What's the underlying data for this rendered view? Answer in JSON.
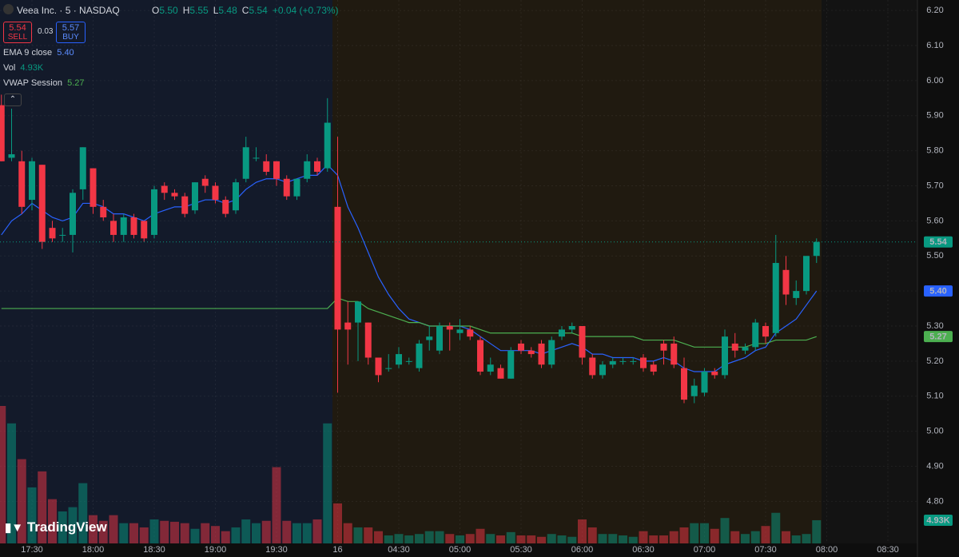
{
  "chart_data": {
    "type": "candlestick",
    "title": "Veea Inc. · 5 · NASDAQ",
    "categories": [
      null,
      null,
      null,
      "17:30",
      null,
      null,
      null,
      null,
      null,
      "18:00",
      null,
      null,
      null,
      null,
      null,
      "18:30",
      null,
      null,
      null,
      null,
      null,
      "19:00",
      null,
      null,
      null,
      null,
      null,
      "19:30",
      null,
      null,
      null,
      null,
      null,
      "16",
      null,
      null,
      null,
      null,
      null,
      "04:30",
      null,
      null,
      null,
      null,
      null,
      "05:00",
      null,
      null,
      null,
      null,
      null,
      "05:30",
      null,
      null,
      null,
      null,
      null,
      "06:00",
      null,
      null,
      null,
      null,
      null,
      "06:30",
      null,
      null,
      null,
      null,
      null,
      "07:00",
      null,
      null,
      null,
      null,
      null,
      "07:30",
      null,
      null,
      null,
      null,
      null,
      "08:00",
      null,
      null,
      null,
      null,
      null,
      "08:30",
      null
    ],
    "open": [
      5.93,
      5.78,
      5.77,
      5.66,
      5.76,
      5.58,
      5.56,
      5.56,
      5.69,
      5.75,
      5.64,
      5.6,
      5.56,
      5.61,
      5.6,
      5.56,
      5.7,
      5.68,
      5.67,
      5.63,
      5.72,
      5.7,
      5.66,
      5.63,
      5.72,
      5.78,
      5.77,
      5.77,
      5.72,
      5.67,
      5.72,
      5.77,
      5.75,
      5.64,
      5.31,
      5.31,
      5.31,
      5.21,
      5.18,
      5.19,
      5.2,
      5.18,
      5.26,
      5.23,
      5.3,
      5.28,
      5.29,
      5.26,
      5.17,
      5.18,
      5.15,
      5.25,
      5.23,
      5.25,
      5.19,
      5.27,
      5.29,
      5.3,
      5.21,
      5.16,
      5.19,
      5.2,
      5.2,
      5.21,
      5.19,
      5.25,
      5.25,
      5.18,
      5.1,
      5.11,
      5.17,
      5.16,
      5.25,
      5.23,
      5.24,
      5.3,
      5.28,
      5.46,
      5.38,
      5.4,
      5.5,
      null,
      null,
      null,
      null,
      null,
      null,
      null,
      null
    ],
    "high": [
      5.96,
      5.92,
      5.8,
      5.78,
      5.76,
      5.6,
      5.58,
      5.69,
      5.81,
      5.75,
      5.66,
      5.62,
      5.62,
      5.62,
      5.6,
      5.7,
      5.71,
      5.69,
      5.68,
      5.71,
      5.73,
      5.71,
      5.67,
      5.72,
      5.84,
      5.81,
      5.79,
      5.77,
      5.73,
      5.72,
      5.79,
      5.78,
      5.95,
      5.84,
      5.37,
      5.37,
      5.31,
      5.21,
      5.22,
      5.24,
      5.21,
      5.26,
      5.3,
      5.31,
      5.31,
      5.32,
      5.3,
      5.27,
      5.21,
      5.19,
      5.24,
      5.26,
      5.24,
      5.26,
      5.27,
      5.3,
      5.31,
      5.3,
      5.22,
      5.2,
      5.21,
      5.21,
      5.21,
      5.22,
      5.2,
      5.26,
      5.27,
      5.21,
      5.15,
      5.18,
      5.18,
      5.29,
      5.28,
      5.25,
      5.32,
      5.31,
      5.56,
      5.5,
      5.43,
      5.5,
      5.55,
      null,
      null,
      null,
      null,
      null,
      null,
      null,
      null
    ],
    "low": [
      5.77,
      5.77,
      5.62,
      5.63,
      5.52,
      5.54,
      5.54,
      5.51,
      5.66,
      5.62,
      5.6,
      5.54,
      5.54,
      5.55,
      5.54,
      5.55,
      5.66,
      5.66,
      5.61,
      5.62,
      5.68,
      5.65,
      5.61,
      5.62,
      5.71,
      5.77,
      5.73,
      5.7,
      5.66,
      5.66,
      5.71,
      5.73,
      5.74,
      5.11,
      5.19,
      5.2,
      5.19,
      5.14,
      5.17,
      5.18,
      5.19,
      5.17,
      5.23,
      5.22,
      5.23,
      5.26,
      5.26,
      5.16,
      5.16,
      5.15,
      5.15,
      5.22,
      5.21,
      5.18,
      5.18,
      5.26,
      5.28,
      5.19,
      5.15,
      5.15,
      5.18,
      5.19,
      5.19,
      5.17,
      5.16,
      5.19,
      5.18,
      5.08,
      5.08,
      5.1,
      5.15,
      5.15,
      5.21,
      5.22,
      5.23,
      5.25,
      5.27,
      5.36,
      5.36,
      5.39,
      5.48,
      null,
      null,
      null,
      null,
      null,
      null,
      null,
      null
    ],
    "close": [
      5.77,
      5.79,
      5.64,
      5.77,
      5.54,
      5.55,
      5.56,
      5.68,
      5.81,
      5.64,
      5.61,
      5.56,
      5.61,
      5.56,
      5.55,
      5.69,
      5.68,
      5.67,
      5.62,
      5.71,
      5.7,
      5.66,
      5.62,
      5.71,
      5.81,
      5.78,
      5.74,
      5.72,
      5.67,
      5.72,
      5.77,
      5.74,
      5.88,
      5.29,
      5.29,
      5.37,
      5.21,
      5.16,
      5.18,
      5.22,
      5.2,
      5.25,
      5.27,
      5.3,
      5.29,
      5.29,
      5.27,
      5.17,
      5.19,
      5.15,
      5.23,
      5.23,
      5.22,
      5.19,
      5.26,
      5.29,
      5.3,
      5.21,
      5.16,
      5.19,
      5.2,
      5.2,
      5.2,
      5.18,
      5.17,
      5.23,
      5.19,
      5.09,
      5.13,
      5.17,
      5.16,
      5.27,
      5.23,
      5.24,
      5.31,
      5.27,
      5.48,
      5.39,
      5.4,
      5.5,
      5.54,
      null,
      null,
      null,
      null,
      null,
      null,
      null,
      null
    ],
    "volume": {
      "name": "Vol",
      "last_label": "4.93K",
      "values": [
        29200,
        25500,
        17900,
        11900,
        15300,
        9400,
        6800,
        7700,
        12800,
        6000,
        4800,
        6000,
        4300,
        4300,
        3400,
        5100,
        4800,
        4600,
        4300,
        3100,
        4300,
        3700,
        2600,
        3400,
        5100,
        4300,
        4800,
        16200,
        4800,
        4300,
        4300,
        5100,
        25500,
        8500,
        4300,
        3400,
        3400,
        2600,
        1700,
        2000,
        1700,
        2000,
        2600,
        2600,
        2000,
        1700,
        2000,
        3100,
        2000,
        1700,
        2400,
        1700,
        1700,
        1400,
        2000,
        1700,
        1400,
        5100,
        3400,
        2000,
        2000,
        1700,
        1400,
        2600,
        1700,
        1700,
        2600,
        3400,
        4300,
        4300,
        3100,
        5400,
        2600,
        2000,
        2600,
        3700,
        6500,
        2600,
        1700,
        2000,
        4930,
        null,
        null,
        null,
        null,
        null,
        null,
        null,
        null
      ]
    },
    "series": [
      {
        "name": "EMA 9 close",
        "color": "#2962ff",
        "last_label": "5.40",
        "values": [
          5.56,
          5.6,
          5.62,
          5.65,
          5.63,
          5.61,
          5.6,
          5.61,
          5.65,
          5.65,
          5.64,
          5.62,
          5.62,
          5.61,
          5.6,
          5.62,
          5.63,
          5.64,
          5.64,
          5.65,
          5.66,
          5.66,
          5.65,
          5.66,
          5.69,
          5.71,
          5.72,
          5.72,
          5.71,
          5.72,
          5.73,
          5.73,
          5.76,
          5.73,
          5.64,
          5.58,
          5.51,
          5.44,
          5.39,
          5.35,
          5.32,
          5.31,
          5.3,
          5.3,
          5.3,
          5.3,
          5.29,
          5.27,
          5.25,
          5.23,
          5.23,
          5.23,
          5.23,
          5.22,
          5.23,
          5.24,
          5.25,
          5.24,
          5.22,
          5.22,
          5.21,
          5.21,
          5.21,
          5.2,
          5.2,
          5.21,
          5.2,
          5.18,
          5.17,
          5.17,
          5.17,
          5.19,
          5.2,
          5.21,
          5.23,
          5.24,
          5.28,
          5.3,
          5.32,
          5.36,
          5.4,
          null,
          null,
          null,
          null,
          null,
          null,
          null,
          null
        ]
      },
      {
        "name": "VWAP Session",
        "color": "#4caf50",
        "last_label": "5.27",
        "values": [
          5.35,
          5.35,
          5.35,
          5.35,
          5.35,
          5.35,
          5.35,
          5.35,
          5.35,
          5.35,
          5.35,
          5.35,
          5.35,
          5.35,
          5.35,
          5.35,
          5.35,
          5.35,
          5.35,
          5.35,
          5.35,
          5.35,
          5.35,
          5.35,
          5.35,
          5.35,
          5.35,
          5.35,
          5.35,
          5.35,
          5.35,
          5.35,
          5.35,
          5.38,
          5.37,
          5.37,
          5.35,
          5.34,
          5.33,
          5.32,
          5.31,
          5.31,
          5.3,
          5.3,
          5.3,
          5.3,
          5.3,
          5.29,
          5.28,
          5.28,
          5.28,
          5.28,
          5.28,
          5.28,
          5.28,
          5.28,
          5.28,
          5.27,
          5.27,
          5.27,
          5.27,
          5.27,
          5.27,
          5.26,
          5.26,
          5.26,
          5.26,
          5.25,
          5.24,
          5.24,
          5.24,
          5.24,
          5.24,
          5.24,
          5.25,
          5.25,
          5.26,
          5.26,
          5.26,
          5.26,
          5.27,
          null,
          null,
          null,
          null,
          null,
          null,
          null,
          null
        ]
      }
    ],
    "up_color": "#089981",
    "down_color": "#f23645",
    "ylim": [
      4.68,
      6.23
    ],
    "yticks": [
      {
        "value": 6.2,
        "label": "6.20"
      },
      {
        "value": 6.1,
        "label": "6.10"
      },
      {
        "value": 6.0,
        "label": "6.00"
      },
      {
        "value": 5.9,
        "label": "5.90"
      },
      {
        "value": 5.8,
        "label": "5.80"
      },
      {
        "value": 5.7,
        "label": "5.70"
      },
      {
        "value": 5.6,
        "label": "5.60"
      },
      {
        "value": 5.5,
        "label": "5.50"
      },
      {
        "value": 5.4,
        "label": "5.40"
      },
      {
        "value": 5.3,
        "label": "5.30"
      },
      {
        "value": 5.2,
        "label": "5.20"
      },
      {
        "value": 5.1,
        "label": "5.10"
      },
      {
        "value": 5.0,
        "label": "5.00"
      },
      {
        "value": 4.9,
        "label": "4.90"
      },
      {
        "value": 4.8,
        "label": "4.80"
      }
    ],
    "grid": true,
    "header": {
      "ohlc": [
        {
          "key": "O",
          "value": "5.50"
        },
        {
          "key": "H",
          "value": "5.55"
        },
        {
          "key": "L",
          "value": "5.48"
        },
        {
          "key": "C",
          "value": "5.54"
        }
      ],
      "change": "+0.04 (+0.73%)",
      "sell": {
        "price": "5.54",
        "label": "SELL"
      },
      "spread": "0.03",
      "buy": {
        "price": "5.57",
        "label": "BUY"
      }
    }
  },
  "watermark": "TradingView"
}
